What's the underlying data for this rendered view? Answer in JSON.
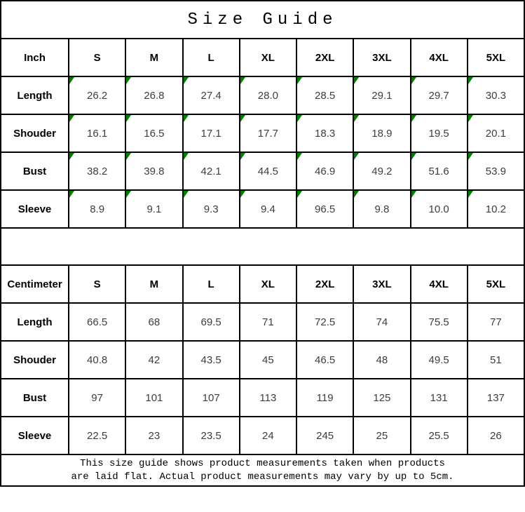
{
  "title": "Size Guide",
  "colors": {
    "border": "#000000",
    "corner_marker_green": "#008000",
    "value_text": "#3d3d3d"
  },
  "corner_marker_icon": "green-corner-triangle",
  "tables": [
    {
      "unit_label": "Inch",
      "sizes": [
        "S",
        "M",
        "L",
        "XL",
        "2XL",
        "3XL",
        "4XL",
        "5XL"
      ],
      "has_corner_markers": true,
      "rows": [
        {
          "label": "Length",
          "values": [
            "26.2",
            "26.8",
            "27.4",
            "28.0",
            "28.5",
            "29.1",
            "29.7",
            "30.3"
          ]
        },
        {
          "label": "Shouder",
          "values": [
            "16.1",
            "16.5",
            "17.1",
            "17.7",
            "18.3",
            "18.9",
            "19.5",
            "20.1"
          ]
        },
        {
          "label": "Bust",
          "values": [
            "38.2",
            "39.8",
            "42.1",
            "44.5",
            "46.9",
            "49.2",
            "51.6",
            "53.9"
          ]
        },
        {
          "label": "Sleeve",
          "values": [
            "8.9",
            "9.1",
            "9.3",
            "9.4",
            "96.5",
            "9.8",
            "10.0",
            "10.2"
          ]
        }
      ]
    },
    {
      "unit_label": "Centimeter",
      "sizes": [
        "S",
        "M",
        "L",
        "XL",
        "2XL",
        "3XL",
        "4XL",
        "5XL"
      ],
      "has_corner_markers": false,
      "rows": [
        {
          "label": "Length",
          "values": [
            "66.5",
            "68",
            "69.5",
            "71",
            "72.5",
            "74",
            "75.5",
            "77"
          ]
        },
        {
          "label": "Shouder",
          "values": [
            "40.8",
            "42",
            "43.5",
            "45",
            "46.5",
            "48",
            "49.5",
            "51"
          ]
        },
        {
          "label": "Bust",
          "values": [
            "97",
            "101",
            "107",
            "113",
            "119",
            "125",
            "131",
            "137"
          ]
        },
        {
          "label": "Sleeve",
          "values": [
            "22.5",
            "23",
            "23.5",
            "24",
            "245",
            "25",
            "25.5",
            "26"
          ]
        }
      ]
    }
  ],
  "footer": {
    "line1": "This size guide shows product measurements taken when products",
    "line2": "are laid flat. Actual product measurements may vary by up to 5cm."
  }
}
